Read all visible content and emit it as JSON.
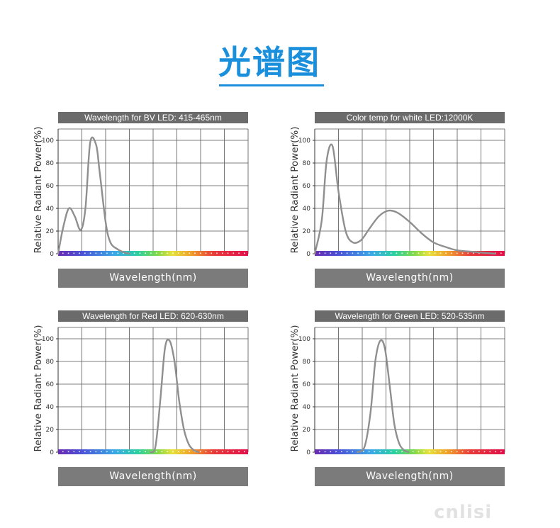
{
  "page": {
    "title": "光谱图",
    "watermark": "cnlisi"
  },
  "chart_data": [
    {
      "type": "line",
      "title": "Wavelength for BV LED: 415-465nm",
      "xlabel": "Wavelength(nm)",
      "ylabel": "Relative Radiant Power(%)",
      "ylim": [
        0,
        110
      ],
      "yticks": [
        0,
        20,
        40,
        60,
        80,
        100
      ],
      "xlim": [
        0,
        8
      ],
      "series": [
        {
          "x": [
            0,
            0.2,
            0.45,
            0.7,
            0.95,
            1.15,
            1.35,
            1.6,
            1.75,
            2.0,
            2.2,
            2.5,
            2.8,
            3.0
          ],
          "y": [
            0,
            22,
            40,
            33,
            21,
            40,
            98,
            96,
            72,
            28,
            10,
            4,
            1,
            0
          ]
        }
      ]
    },
    {
      "type": "line",
      "title": "Color temp for white LED:12000K",
      "xlabel": "Wavelength(nm)",
      "ylabel": "Relative Radiant Power(%)",
      "ylim": [
        0,
        110
      ],
      "yticks": [
        0,
        20,
        40,
        60,
        80,
        100
      ],
      "xlim": [
        0,
        8
      ],
      "series": [
        {
          "x": [
            0,
            0.3,
            0.5,
            0.75,
            1.0,
            1.3,
            1.6,
            1.95,
            2.3,
            2.7,
            3.1,
            3.5,
            4.0,
            4.5,
            5.0,
            5.5,
            6.0,
            6.5,
            7.0,
            7.6
          ],
          "y": [
            0,
            30,
            82,
            95,
            55,
            20,
            10,
            12,
            22,
            33,
            38,
            36,
            28,
            18,
            10,
            6,
            3,
            2,
            1,
            0
          ]
        }
      ]
    },
    {
      "type": "line",
      "title": "Wavelength for Red LED: 620-630nm",
      "xlabel": "Wavelength(nm)",
      "ylabel": "Relative Radiant Power(%)",
      "ylim": [
        0,
        110
      ],
      "yticks": [
        0,
        20,
        40,
        60,
        80,
        100
      ],
      "xlim": [
        0,
        8
      ],
      "series": [
        {
          "x": [
            3.9,
            4.1,
            4.3,
            4.5,
            4.7,
            4.9,
            5.1,
            5.3,
            5.5,
            5.7,
            5.9
          ],
          "y": [
            0,
            5,
            45,
            92,
            98,
            80,
            45,
            20,
            7,
            2,
            0
          ]
        }
      ]
    },
    {
      "type": "line",
      "title": "Wavelength for Green LED: 520-535nm",
      "xlabel": "Wavelength(nm)",
      "ylabel": "Relative Radiant Power(%)",
      "ylim": [
        0,
        110
      ],
      "yticks": [
        0,
        20,
        40,
        60,
        80,
        100
      ],
      "xlim": [
        0,
        8
      ],
      "series": [
        {
          "x": [
            1.8,
            2.1,
            2.35,
            2.55,
            2.75,
            2.95,
            3.15,
            3.35,
            3.55,
            3.75,
            3.95
          ],
          "y": [
            0,
            5,
            35,
            80,
            98,
            92,
            60,
            25,
            8,
            2,
            0
          ]
        }
      ]
    }
  ],
  "colors": {
    "title_blue": "#1a8fdc",
    "curve_gray": "#8f8f8f",
    "header_gray": "#6b6b6b",
    "footer_gray": "#7b7b7b"
  }
}
